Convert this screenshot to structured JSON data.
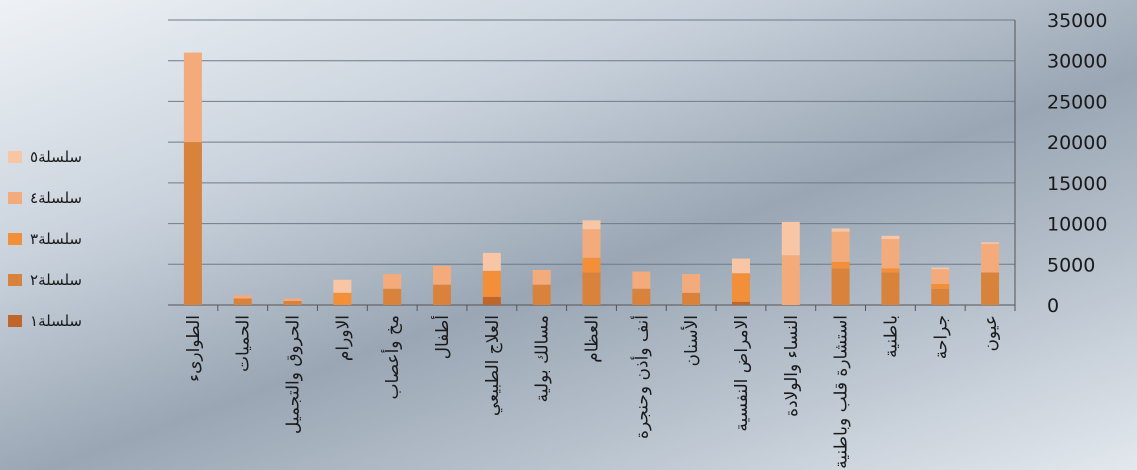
{
  "chart_data": {
    "type": "bar",
    "stacked": true,
    "x_reversed": true,
    "y_axis_side": "right",
    "legend": "left",
    "categories": [
      "عيون",
      "جراحة",
      "باطنية",
      "استشارة قلب وباطنية",
      "النساء والولادة",
      "الامراض النفسية",
      "الأسنان",
      "أنف وأذن وحنجرة",
      "العظام",
      "مسالك بولية",
      "العلاج الطبيعي",
      "أطفال",
      "مخ وأعصاب",
      "الاورام",
      "الحروق والتجميل",
      "الحميات",
      "الطوارىء"
    ],
    "series": [
      {
        "name": "سلسلة١",
        "color": "#c0662a",
        "values": [
          0,
          0,
          0,
          0,
          0,
          400,
          0,
          0,
          0,
          0,
          1000,
          0,
          0,
          0,
          0,
          0,
          0
        ]
      },
      {
        "name": "سلسلة٢",
        "color": "#d9823c",
        "values": [
          4000,
          2000,
          4000,
          4500,
          0,
          0,
          1500,
          2000,
          4000,
          2500,
          0,
          2500,
          2000,
          0,
          500,
          800,
          20000
        ]
      },
      {
        "name": "سلسلة٣",
        "color": "#f28f38",
        "values": [
          0,
          600,
          500,
          800,
          0,
          3500,
          0,
          0,
          1800,
          0,
          3200,
          0,
          0,
          1500,
          0,
          0,
          0
        ]
      },
      {
        "name": "سلسلة٤",
        "color": "#f4ab7c",
        "values": [
          3500,
          1800,
          3600,
          3700,
          6100,
          0,
          2300,
          2100,
          3500,
          1800,
          0,
          2300,
          1800,
          0,
          300,
          400,
          11000
        ]
      },
      {
        "name": "سلسلة٥",
        "color": "#f8c6a4",
        "values": [
          200,
          200,
          400,
          400,
          4100,
          1800,
          0,
          0,
          1100,
          0,
          2200,
          0,
          0,
          1600,
          0,
          0,
          0
        ]
      }
    ],
    "ylim": [
      0,
      35000
    ],
    "yticks": [
      0,
      5000,
      10000,
      15000,
      20000,
      25000,
      30000,
      35000
    ],
    "grid": true
  }
}
